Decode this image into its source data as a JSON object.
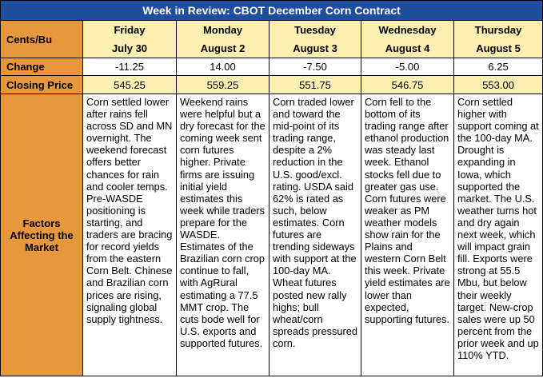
{
  "title": "Week in Review: CBOT December Corn Contract",
  "row_labels": {
    "units": "Cents/Bu",
    "change": "Change",
    "closing": "Closing Price",
    "factors": "Factors Affecting the Market"
  },
  "days": [
    {
      "day": "Friday",
      "date": "July 30",
      "change": "-11.25",
      "close": "545.25",
      "factors": "Corn settled lower after rains fell across SD and MN overnight. The weekend forecast offers better chances for rain and cooler temps. Pre-WASDE positioning is starting, and traders are bracing for record yields from the eastern Corn Belt. Chinese and Brazilian corn prices are rising, signaling global supply tightness."
    },
    {
      "day": "Monday",
      "date": "August 2",
      "change": "14.00",
      "close": "559.25",
      "factors": "Weekend rains were helpful but a dry forecast for the coming week sent corn futures higher. Private firms are issuing initial yield estimates this week while traders prepare for the WASDE. Estimates of the Brazilian corn crop continue to fall, with AgRural estimating a 77.5 MMT crop. The cuts bode well for U.S. exports and supported futures."
    },
    {
      "day": "Tuesday",
      "date": "August 3",
      "change": "-7.50",
      "close": "551.75",
      "factors": "Corn traded lower and toward the mid-point of its trading range, despite a 2% reduction in the U.S. good/excl. rating. USDA said 62% is rated as such, below estimates. Corn futures are trending sideways with support at the 100-day MA. Wheat futures posted new rally highs; bull wheat/corn spreads pressured corn."
    },
    {
      "day": "Wednesday",
      "date": "August 4",
      "change": "-5.00",
      "close": "546.75",
      "factors": "Corn fell to the bottom of its trading range after ethanol production was steady last week. Ethanol stocks fell due to greater gas use. Corn futures were weaker as PM weather models show rain for the Plains and western Corn Belt this week. Private yield estimates are lower than expected, supporting futures."
    },
    {
      "day": "Thursday",
      "date": "August 5",
      "change": "6.25",
      "close": "553.00",
      "factors": "Corn settled higher with support coming at the 100-day MA. Drought is expanding in Iowa, which supported the market. The U.S. weather turns hot and dry again next week, which will impact grain fill. Exports were strong at 55.5 Mbu, but below their weekly target. New-crop sales were up 50 percent from the prior week and up 110% YTD."
    }
  ],
  "colors": {
    "title_bg": "#1f4e9c",
    "label_bg": "#e8983c",
    "day_bg": "#fdeeb2"
  }
}
